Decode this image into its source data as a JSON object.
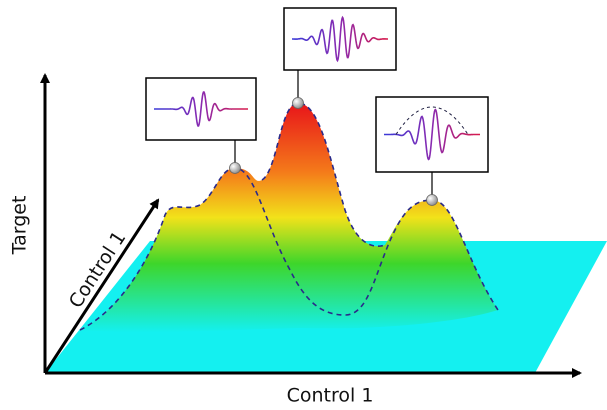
{
  "axes": {
    "vertical_label": "Target",
    "depth_label": "Control 1",
    "horizontal_label": "Control 1"
  }
}
